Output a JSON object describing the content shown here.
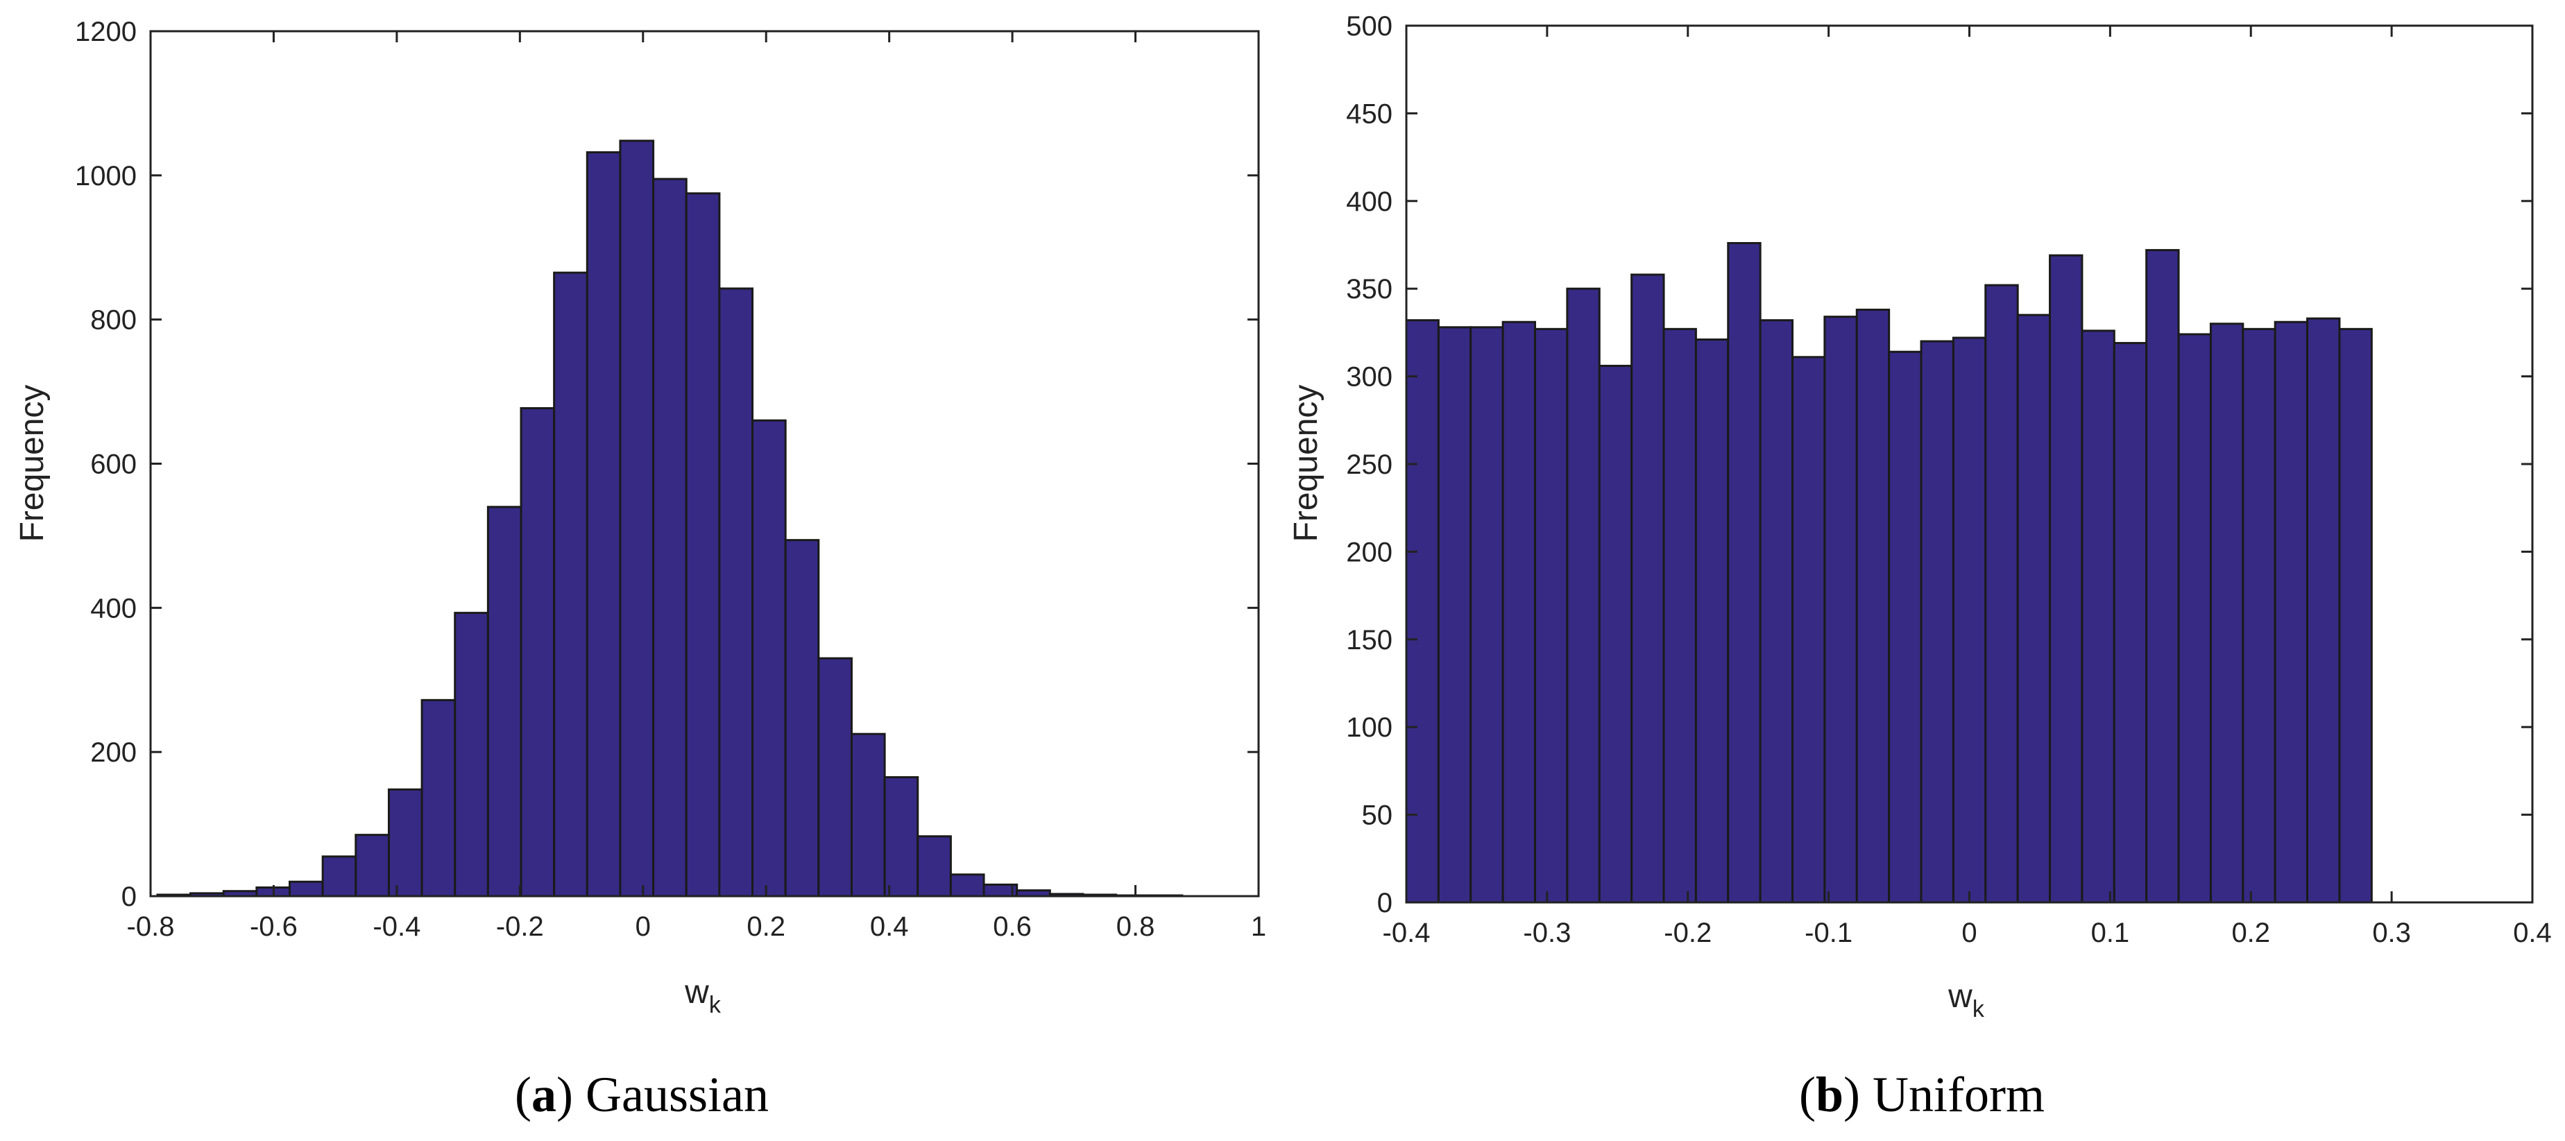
{
  "chart_data": [
    {
      "type": "bar",
      "caption": {
        "letter": "a",
        "name": "Gaussian"
      },
      "xlabel": "w",
      "xlabel_sub": "k",
      "ylabel": "Frequency",
      "xlim": [
        -0.8,
        1.0
      ],
      "ylim": [
        0,
        1200
      ],
      "xticks": [
        "-0.8",
        "-0.6",
        "-0.4",
        "-0.2",
        "0",
        "0.2",
        "0.4",
        "0.6",
        "0.8",
        "1"
      ],
      "yticks": [
        "0",
        "200",
        "400",
        "600",
        "800",
        "1000",
        "1200"
      ],
      "bar_color": "#372a85",
      "bins": {
        "start": -0.7888,
        "width": 0.0537,
        "values": [
          2,
          4,
          7,
          12,
          20,
          55,
          85,
          148,
          272,
          393,
          540,
          677,
          865,
          1032,
          1048,
          995,
          975,
          843,
          660,
          494,
          330,
          225,
          165,
          83,
          30,
          16,
          8,
          3,
          2,
          1,
          1
        ]
      }
    },
    {
      "type": "bar",
      "caption": {
        "letter": "b",
        "name": "Uniform"
      },
      "xlabel": "w",
      "xlabel_sub": "k",
      "ylabel": "Frequency",
      "xlim": [
        -0.4,
        0.4
      ],
      "ylim": [
        0,
        500
      ],
      "xticks": [
        "-0.4",
        "-0.3",
        "-0.2",
        "-0.1",
        "0",
        "0.1",
        "0.2",
        "0.3",
        "0.4"
      ],
      "yticks": [
        "0",
        "50",
        "100",
        "150",
        "200",
        "250",
        "300",
        "350",
        "400",
        "450",
        "500"
      ],
      "bar_color": "#372a85",
      "bins": {
        "start": -0.4,
        "width": 0.02286,
        "values": [
          332,
          328,
          328,
          331,
          327,
          350,
          306,
          358,
          327,
          321,
          376,
          332,
          311,
          334,
          338,
          314,
          320,
          322,
          352,
          335,
          369,
          326,
          319,
          372,
          324,
          330,
          327,
          331,
          333,
          327
        ]
      }
    }
  ]
}
